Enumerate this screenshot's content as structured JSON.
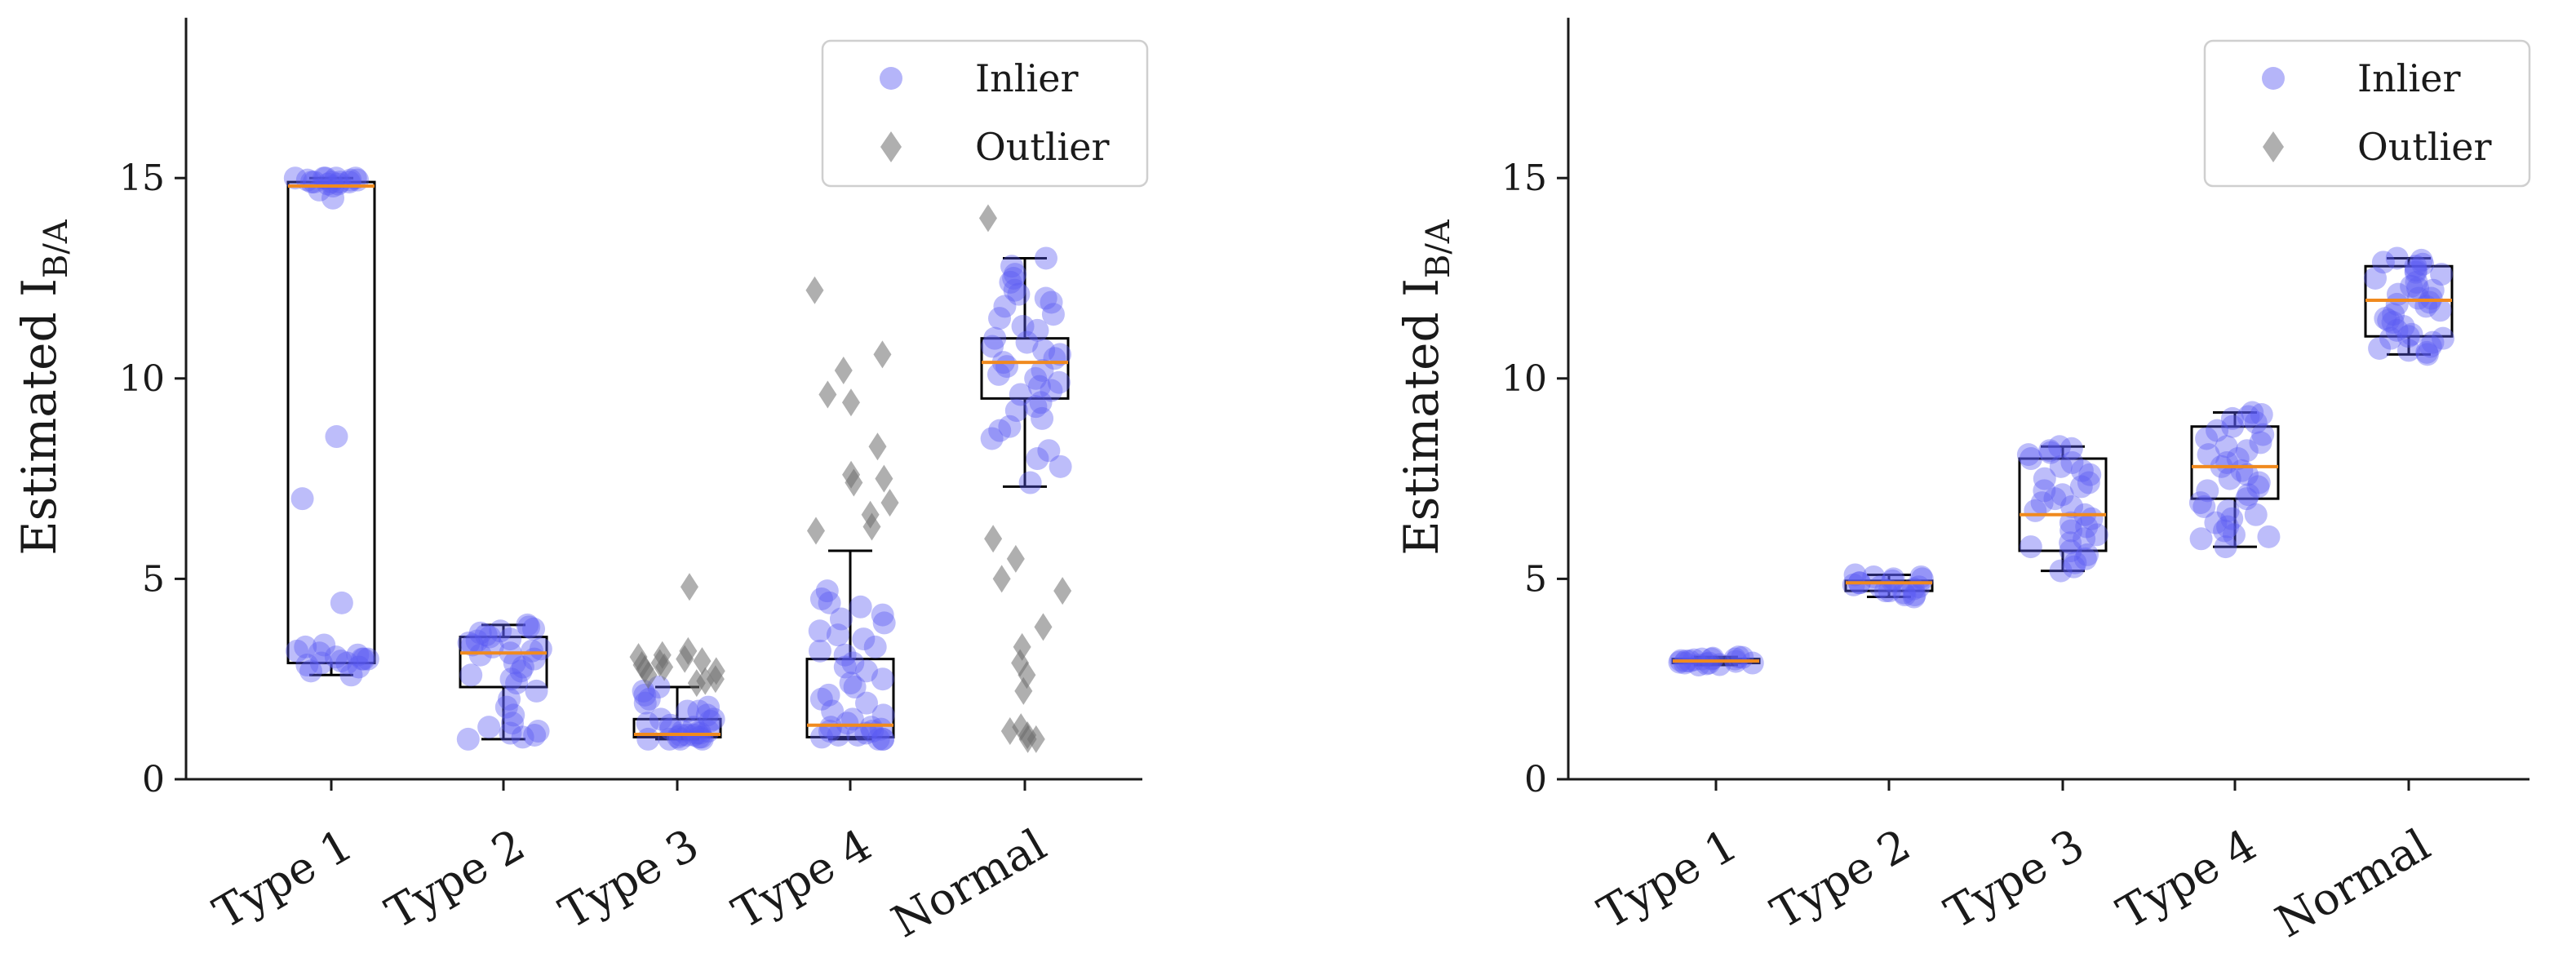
{
  "chart_data": [
    {
      "type": "box",
      "id": "left",
      "ylabel": "Estimated I",
      "ylabel_subscript": "B/A",
      "yticks": [
        0,
        5,
        10,
        15
      ],
      "ytick_labels": [
        "0",
        "5",
        "10",
        "15"
      ],
      "ylim": [
        0,
        19
      ],
      "categories": [
        "Type 1",
        "Type 2",
        "Type 3",
        "Type 4",
        "Normal"
      ],
      "legend": {
        "placement": "top-right",
        "entries": [
          "Inlier",
          "Outlier"
        ]
      },
      "boxes": [
        {
          "category": "Type 1",
          "whisker_low": 2.6,
          "q1": 2.9,
          "median": 14.8,
          "q3": 14.9,
          "whisker_high": 15.0
        },
        {
          "category": "Type 2",
          "whisker_low": 1.0,
          "q1": 2.3,
          "median": 3.15,
          "q3": 3.55,
          "whisker_high": 3.85
        },
        {
          "category": "Type 3",
          "whisker_low": 1.0,
          "q1": 1.05,
          "median": 1.12,
          "q3": 1.5,
          "whisker_high": 2.3
        },
        {
          "category": "Type 4",
          "whisker_low": 1.0,
          "q1": 1.05,
          "median": 1.35,
          "q3": 3.0,
          "whisker_high": 5.7
        },
        {
          "category": "Normal",
          "whisker_low": 7.3,
          "q1": 9.5,
          "median": 10.4,
          "q3": 11.0,
          "whisker_high": 13.0
        }
      ],
      "inlier_clusters": [
        {
          "category": "Type 1",
          "values": [
            14.95,
            14.9,
            15.0,
            14.85,
            14.9,
            15.0,
            14.95,
            14.9,
            14.8,
            14.5,
            15.0,
            14.85,
            14.9,
            15.0,
            14.95,
            14.7,
            15.0,
            14.9,
            3.0,
            2.9,
            2.8,
            3.1,
            3.2,
            2.95,
            3.0,
            2.7,
            2.6,
            3.3,
            3.0,
            2.85,
            3.15,
            3.05,
            2.9,
            3.35,
            8.55,
            7.0,
            4.4
          ]
        },
        {
          "category": "Type 2",
          "values": [
            3.8,
            3.7,
            3.6,
            3.5,
            3.4,
            3.3,
            3.2,
            3.1,
            3.0,
            2.9,
            2.8,
            2.6,
            2.4,
            2.2,
            2.0,
            1.8,
            1.6,
            1.4,
            1.2,
            1.1,
            1.0,
            3.85,
            3.75,
            3.55,
            3.45,
            3.25,
            3.15,
            2.7,
            2.5,
            1.05,
            1.15,
            1.3,
            3.65,
            3.35
          ]
        },
        {
          "category": "Type 3",
          "values": [
            1.0,
            1.05,
            1.1,
            1.15,
            1.2,
            1.0,
            1.1,
            1.05,
            1.2,
            1.3,
            1.4,
            1.5,
            1.6,
            1.7,
            1.8,
            1.9,
            2.0,
            2.1,
            2.2,
            2.3,
            1.0,
            1.1,
            1.25,
            1.35,
            1.45,
            1.0,
            1.05,
            1.15,
            1.5,
            1.7
          ]
        },
        {
          "category": "Type 4",
          "values": [
            1.0,
            1.1,
            1.2,
            1.3,
            1.4,
            1.5,
            1.7,
            1.9,
            2.1,
            2.3,
            2.5,
            2.7,
            2.9,
            3.1,
            3.3,
            3.5,
            3.7,
            3.9,
            4.1,
            4.3,
            4.5,
            4.7,
            1.05,
            1.15,
            1.25,
            1.0,
            1.1,
            1.2,
            1.6,
            2.0,
            2.4,
            2.8,
            3.2,
            3.6,
            4.0,
            4.4,
            1.0,
            1.3
          ]
        },
        {
          "category": "Normal",
          "values": [
            12.4,
            12.1,
            11.8,
            11.5,
            11.2,
            10.9,
            10.6,
            10.4,
            10.2,
            10.0,
            9.8,
            9.6,
            9.4,
            9.2,
            9.0,
            8.8,
            8.5,
            8.2,
            7.8,
            7.4,
            12.8,
            13.0,
            12.6,
            12.0,
            11.0,
            10.5,
            10.3,
            10.1,
            9.9,
            9.7,
            11.6,
            11.3,
            10.8,
            12.2,
            8.0,
            8.7,
            9.3,
            10.7,
            11.9,
            12.5
          ]
        }
      ],
      "outlier_clusters": [
        {
          "category": "Type 3",
          "values": [
            4.8,
            3.2,
            3.1,
            3.0,
            2.9,
            2.85,
            2.8,
            2.7,
            2.6,
            2.5,
            2.45,
            2.4,
            3.05,
            2.95,
            2.75
          ]
        },
        {
          "category": "Type 4",
          "values": [
            12.2,
            10.6,
            10.2,
            9.6,
            9.4,
            8.3,
            7.6,
            7.5,
            7.4,
            6.9,
            6.6,
            6.3,
            6.2
          ]
        },
        {
          "category": "Normal",
          "values": [
            14.0,
            6.0,
            5.5,
            5.0,
            4.7,
            3.8,
            3.3,
            2.9,
            2.6,
            2.2,
            1.3,
            1.2,
            1.1,
            1.0,
            1.0
          ]
        }
      ]
    },
    {
      "type": "box",
      "id": "right",
      "ylabel": "Estimated I",
      "ylabel_subscript": "B/A",
      "yticks": [
        0,
        5,
        10,
        15
      ],
      "ytick_labels": [
        "0",
        "5",
        "10",
        "15"
      ],
      "ylim": [
        0,
        19
      ],
      "categories": [
        "Type 1",
        "Type 2",
        "Type 3",
        "Type 4",
        "Normal"
      ],
      "legend": {
        "placement": "top-right",
        "entries": [
          "Inlier",
          "Outlier"
        ]
      },
      "boxes": [
        {
          "category": "Type 1",
          "whisker_low": 2.85,
          "q1": 2.9,
          "median": 2.95,
          "q3": 3.0,
          "whisker_high": 3.05
        },
        {
          "category": "Type 2",
          "whisker_low": 4.55,
          "q1": 4.7,
          "median": 4.9,
          "q3": 4.95,
          "whisker_high": 5.1
        },
        {
          "category": "Type 3",
          "whisker_low": 5.2,
          "q1": 5.7,
          "median": 6.6,
          "q3": 8.0,
          "whisker_high": 8.3
        },
        {
          "category": "Type 4",
          "whisker_low": 5.8,
          "q1": 7.0,
          "median": 7.8,
          "q3": 8.8,
          "whisker_high": 9.15
        },
        {
          "category": "Normal",
          "whisker_low": 10.6,
          "q1": 11.05,
          "median": 11.95,
          "q3": 12.8,
          "whisker_high": 13.0
        }
      ],
      "inlier_clusters": [
        {
          "category": "Type 1",
          "values": [
            2.85,
            2.9,
            2.95,
            3.0,
            3.05,
            2.9,
            3.0,
            2.95,
            2.88,
            3.02,
            2.92,
            2.98,
            2.86,
            3.04,
            2.94,
            2.96,
            2.9,
            3.0
          ]
        },
        {
          "category": "Type 2",
          "values": [
            4.55,
            4.6,
            4.7,
            4.8,
            4.9,
            5.0,
            5.05,
            5.1,
            4.65,
            4.75,
            4.85,
            4.95,
            4.6,
            5.0,
            4.9,
            4.8,
            4.7,
            5.05
          ]
        },
        {
          "category": "Type 3",
          "values": [
            5.2,
            5.4,
            5.6,
            5.8,
            6.0,
            6.2,
            6.4,
            6.6,
            6.8,
            7.0,
            7.2,
            7.4,
            7.6,
            7.8,
            8.0,
            8.1,
            8.2,
            8.3,
            5.3,
            5.5,
            5.7,
            6.1,
            6.5,
            6.9,
            7.3,
            7.7,
            8.15,
            8.25,
            5.9,
            6.3,
            6.7,
            7.1,
            7.5,
            7.9
          ]
        },
        {
          "category": "Type 4",
          "values": [
            5.8,
            6.0,
            6.2,
            6.4,
            6.6,
            6.8,
            7.0,
            7.2,
            7.4,
            7.6,
            7.8,
            8.0,
            8.2,
            8.4,
            8.6,
            8.8,
            9.0,
            9.15,
            6.1,
            6.3,
            6.5,
            6.9,
            7.3,
            7.7,
            8.1,
            8.5,
            8.9,
            9.1,
            6.05,
            6.7,
            7.5,
            8.3,
            8.7,
            9.05,
            7.1,
            7.9
          ]
        },
        {
          "category": "Normal",
          "values": [
            10.6,
            10.8,
            11.0,
            11.2,
            11.4,
            11.6,
            11.8,
            12.0,
            12.2,
            12.4,
            12.6,
            12.8,
            13.0,
            10.7,
            10.9,
            11.1,
            11.3,
            11.5,
            11.7,
            11.9,
            12.1,
            12.3,
            12.5,
            12.7,
            12.9,
            10.65,
            11.05,
            11.45,
            11.85,
            12.25,
            12.65,
            12.95,
            11.0,
            12.0,
            10.75,
            12.85
          ]
        }
      ],
      "outlier_clusters": []
    }
  ],
  "colors": {
    "inlier": "#5a5af2",
    "outlier": "#6e6e6e",
    "median": "#f08a1e",
    "axis": "#1a1a1a",
    "box": "#000000"
  }
}
